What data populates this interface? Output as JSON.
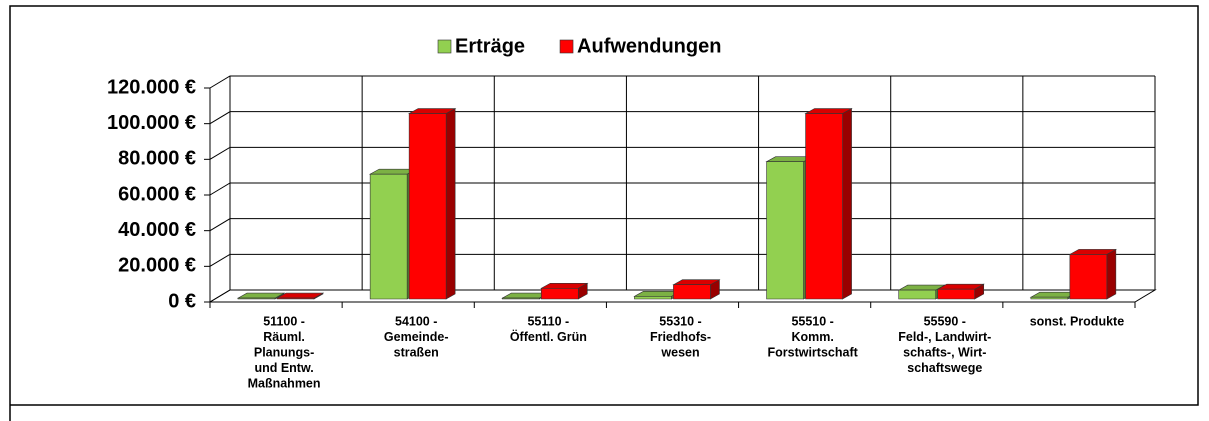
{
  "chart_data": {
    "type": "bar3d",
    "categories": [
      [
        "51100 -",
        "Räuml.",
        "Planungs-",
        "und Entw.",
        "Maßnahmen"
      ],
      [
        "54100 -",
        "Gemeinde-",
        "straßen"
      ],
      [
        "55110 -",
        "Öffentl. Grün"
      ],
      [
        "55310 -",
        "Friedhofs-",
        "wesen"
      ],
      [
        "55510 -",
        "Komm.",
        "Forstwirtschaft"
      ],
      [
        "55590 -",
        "Feld-, Landwirt-",
        "schafts-, Wirt-",
        "schaftswege"
      ],
      [
        "sonst. Produkte"
      ]
    ],
    "series": [
      {
        "name": "Erträge",
        "color": "#92d050",
        "values": [
          500,
          70000,
          500,
          1500,
          77000,
          5000,
          1000
        ]
      },
      {
        "name": "Aufwendungen",
        "color": "#ff0000",
        "values": [
          500,
          104000,
          6000,
          8000,
          104000,
          5500,
          25000
        ]
      }
    ],
    "ylim": [
      0,
      120000
    ],
    "yticks": [
      {
        "value": 0,
        "label": "0 €"
      },
      {
        "value": 20000,
        "label": "20.000 €"
      },
      {
        "value": 40000,
        "label": "40.000 €"
      },
      {
        "value": 60000,
        "label": "60.000 €"
      },
      {
        "value": 80000,
        "label": "80.000 €"
      },
      {
        "value": 100000,
        "label": "100.000 €"
      },
      {
        "value": 120000,
        "label": "120.000 €"
      }
    ],
    "grid": true,
    "legend": "top"
  }
}
